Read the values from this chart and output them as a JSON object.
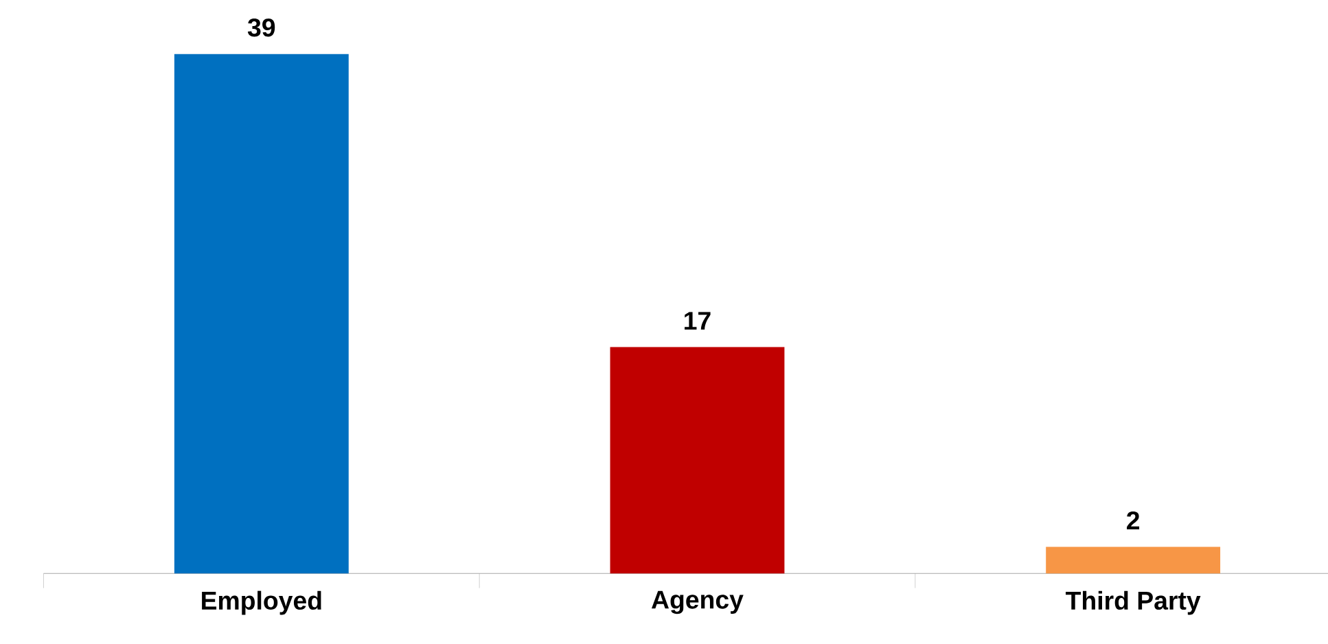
{
  "chart_data": {
    "type": "bar",
    "categories": [
      "Employed",
      "Agency",
      "Third Party"
    ],
    "values": [
      39,
      17,
      2
    ],
    "colors": [
      "#0070c0",
      "#c00000",
      "#f79646"
    ],
    "data_labels": true
  }
}
